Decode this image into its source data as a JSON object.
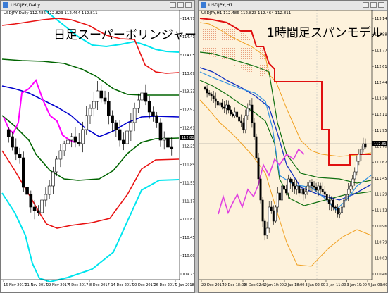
{
  "left_window": {
    "title": "USDJPY,Daily",
    "symbol_info": "USDJPY,Daily  112.486 112.823 112.464 112.811",
    "overlay_title": "日足スーパーボリンジャー",
    "price_labels": [
      "114.775",
      "114.415",
      "114.055",
      "113.695",
      "113.335",
      "112.975",
      "112.615",
      "112.255",
      "111.895",
      "111.535",
      "111.175",
      "110.815",
      "110.455",
      "110.095",
      "109.735"
    ],
    "current_price": "112.811",
    "date_labels": [
      "16 Nov 2017",
      "21 Nov 2017",
      "29 Nov 2017",
      "4 Dec 2017",
      "8 Dec 2017",
      "14 Dec 2017",
      "20 Dec 2017",
      "26 Dec 2017",
      "2 Jan 2018"
    ],
    "colors": {
      "sigma3": "#00e5ee",
      "sigma2": "#e81010",
      "sigma1": "#006400",
      "mid": "#0000cd",
      "lag": "#ff00ff",
      "bull": "#ffffff",
      "bear": "#000000"
    }
  },
  "right_window": {
    "title": "USDJPY,H1",
    "symbol_info": "USDJPY,H1  112.486 112.823 112.464 112.811",
    "overlay_title": "1時間足スパンモデル",
    "price_labels": [
      "113.140",
      "112.980",
      "112.775",
      "112.610",
      "112.445",
      "112.280",
      "112.115",
      "111.950",
      "111.785",
      "111.620",
      "111.455",
      "111.290",
      "111.125",
      "110.960",
      "110.795",
      "110.630",
      "110.465"
    ],
    "current_price": "112.811",
    "date_labels": [
      "29 Dec 2017",
      "29 Dec 18:00",
      "30 Dec 02:00",
      "2 Jan 10:00",
      "2 Jan 18:00",
      "3 Jan 02:00",
      "3 Jan 11:00",
      "3 Jan 19:00",
      "4 Jan 03:00"
    ],
    "colors": {
      "span_red": "#e01010",
      "cloud_hatch": "#e8a080",
      "bb_orange": "#f0a020",
      "green": "#107010",
      "blue": "#1030c0",
      "lightblue": "#3090e0",
      "lag": "#e040e0",
      "black": "#000000"
    }
  }
}
